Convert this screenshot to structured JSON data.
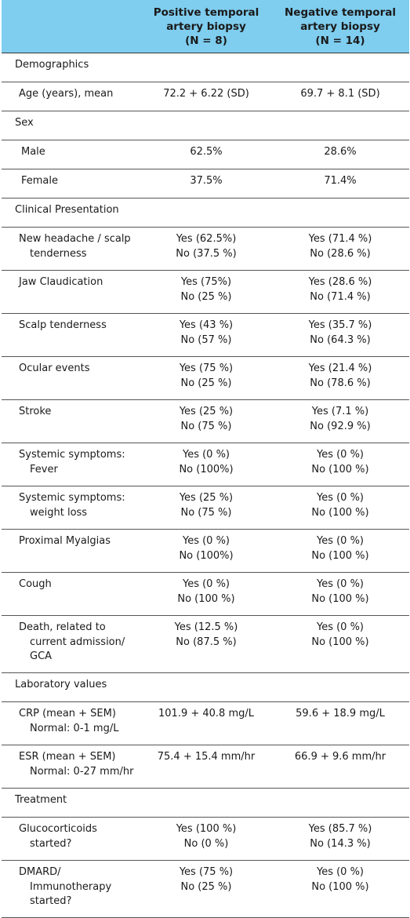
{
  "header": {
    "col1": "",
    "col2_lines": [
      "Positive temporal",
      "artery biopsy",
      "(N = 8)"
    ],
    "col3_lines": [
      "Negative temporal",
      "artery biopsy",
      "(N = 14)"
    ]
  },
  "rows": [
    {
      "type": "section",
      "label": "Demographics"
    },
    {
      "type": "single",
      "label": "Age (years), mean",
      "pos": "72.2 + 6.22 (SD)",
      "neg": "69.7 + 8.1 (SD)"
    },
    {
      "type": "section",
      "label": "Sex"
    },
    {
      "type": "single",
      "label": "Male",
      "pos": "62.5%",
      "neg": "28.6%"
    },
    {
      "type": "single",
      "label": "Female",
      "pos": "37.5%",
      "neg": "71.4%"
    },
    {
      "type": "section",
      "label": "Clinical Presentation"
    },
    {
      "type": "double",
      "label": [
        "New headache / scalp",
        "tenderness"
      ],
      "pos": [
        "Yes (62.5%)",
        "No (37.5 %)"
      ],
      "neg": [
        "Yes (71.4 %)",
        "No (28.6 %)"
      ]
    },
    {
      "type": "double",
      "label": [
        "Jaw Claudication"
      ],
      "pos": [
        "Yes (75%)",
        "No (25 %)"
      ],
      "neg": [
        "Yes (28.6 %)",
        "No (71.4 %)"
      ]
    },
    {
      "type": "double",
      "label": [
        "Scalp tenderness"
      ],
      "pos": [
        "Yes (43 %)",
        "No (57 %)"
      ],
      "neg": [
        "Yes (35.7 %)",
        "No (64.3 %)"
      ]
    },
    {
      "type": "double",
      "label": [
        "Ocular events"
      ],
      "pos": [
        "Yes (75 %)",
        "No (25 %)"
      ],
      "neg": [
        "Yes (21.4 %)",
        "No (78.6 %)"
      ]
    },
    {
      "type": "double",
      "label": [
        "Stroke"
      ],
      "pos": [
        "Yes (25 %)",
        "No (75 %)"
      ],
      "neg": [
        "Yes (7.1 %)",
        "No (92.9 %)"
      ]
    },
    {
      "type": "double",
      "label": [
        "Systemic symptoms:",
        "Fever"
      ],
      "pos": [
        "Yes (0 %)",
        "No (100%)"
      ],
      "neg": [
        "Yes (0 %)",
        "No (100 %)"
      ]
    },
    {
      "type": "double",
      "label": [
        "Systemic symptoms:",
        "weight loss"
      ],
      "pos": [
        "Yes (25 %)",
        "No (75 %)"
      ],
      "neg": [
        "Yes (0 %)",
        "No (100 %)"
      ]
    },
    {
      "type": "double",
      "label": [
        "Proximal Myalgias"
      ],
      "pos": [
        "Yes (0 %)",
        "No (100%)"
      ],
      "neg": [
        "Yes (0 %)",
        "No (100 %)"
      ]
    },
    {
      "type": "double",
      "label": [
        "Cough"
      ],
      "pos": [
        "Yes (0 %)",
        "No (100 %)"
      ],
      "neg": [
        "Yes (0 %)",
        "No (100 %)"
      ]
    },
    {
      "type": "triple",
      "label": [
        "Death, related to",
        "current admission/",
        "GCA"
      ],
      "pos": [
        "Yes (12.5 %)",
        "No (87.5 %)"
      ],
      "neg": [
        "Yes (0 %)",
        "No (100 %)"
      ]
    },
    {
      "type": "section",
      "label": "Laboratory values"
    },
    {
      "type": "double",
      "label": [
        "CRP (mean + SEM)",
        "Normal: 0-1 mg/L"
      ],
      "pos": [
        "101.9 + 40.8 mg/L"
      ],
      "neg": [
        "59.6 + 18.9 mg/L"
      ]
    },
    {
      "type": "double",
      "label": [
        "ESR (mean + SEM)",
        "Normal: 0-27 mm/hr"
      ],
      "pos": [
        "75.4 + 15.4 mm/hr"
      ],
      "neg": [
        "66.9 + 9.6 mm/hr"
      ]
    },
    {
      "type": "section",
      "label": "Treatment"
    },
    {
      "type": "double",
      "label": [
        "Glucocorticoids",
        "started?"
      ],
      "pos": [
        "Yes (100 %)",
        "No (0 %)"
      ],
      "neg": [
        "Yes (85.7 %)",
        "No (14.3 %)"
      ]
    },
    {
      "type": "triple",
      "label": [
        "DMARD/",
        "Immunotherapy",
        "started?"
      ],
      "pos": [
        "Yes (75 %)",
        "No (25 %)"
      ],
      "neg": [
        "Yes (0 %)",
        "No (100 %)"
      ]
    }
  ]
}
